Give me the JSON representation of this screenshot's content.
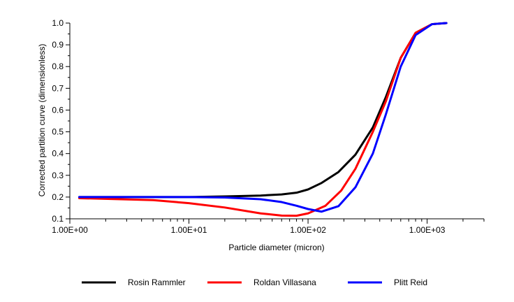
{
  "chart_data": {
    "type": "line",
    "title": "",
    "xlabel": "Particle diameter (micron)",
    "ylabel": "Corrected partition curve (dimensionless)",
    "xscale": "log",
    "xlim": [
      1,
      3000
    ],
    "ylim": [
      0.1,
      1.0
    ],
    "x_ticks": [
      {
        "value": 1,
        "label": "1.00E+00"
      },
      {
        "value": 10,
        "label": "1.00E+01"
      },
      {
        "value": 100,
        "label": "1.00E+02"
      },
      {
        "value": 1000,
        "label": "1.00E+03"
      }
    ],
    "y_ticks": [
      {
        "value": 0.1,
        "label": "0.1"
      },
      {
        "value": 0.2,
        "label": "0.2"
      },
      {
        "value": 0.3,
        "label": "0.3"
      },
      {
        "value": 0.4,
        "label": "0.4"
      },
      {
        "value": 0.5,
        "label": "0.5"
      },
      {
        "value": 0.6,
        "label": "0.6"
      },
      {
        "value": 0.7,
        "label": "0.7"
      },
      {
        "value": 0.8,
        "label": "0.8"
      },
      {
        "value": 0.9,
        "label": "0.9"
      },
      {
        "value": 1.0,
        "label": "1.0"
      }
    ],
    "grid": false,
    "legend_position": "bottom",
    "series": [
      {
        "name": "Rosin Rammler",
        "color": "#000000",
        "x": [
          1.2,
          5,
          10,
          20,
          40,
          60,
          80,
          100,
          130,
          180,
          250,
          350,
          450,
          600,
          800,
          1100,
          1450
        ],
        "y": [
          0.2,
          0.2,
          0.2,
          0.203,
          0.207,
          0.212,
          0.22,
          0.235,
          0.265,
          0.315,
          0.395,
          0.52,
          0.66,
          0.84,
          0.955,
          0.995,
          1.0
        ]
      },
      {
        "name": "Roldan Villasana",
        "color": "#ff0000",
        "x": [
          1.2,
          5,
          10,
          20,
          40,
          60,
          80,
          100,
          140,
          190,
          250,
          350,
          450,
          600,
          800,
          1100,
          1450
        ],
        "y": [
          0.195,
          0.186,
          0.172,
          0.152,
          0.125,
          0.115,
          0.114,
          0.125,
          0.16,
          0.23,
          0.33,
          0.5,
          0.64,
          0.84,
          0.955,
          0.995,
          1.0
        ]
      },
      {
        "name": "Plitt Reid",
        "color": "#0000ff",
        "x": [
          1.2,
          5,
          10,
          20,
          40,
          60,
          80,
          100,
          130,
          180,
          250,
          350,
          450,
          600,
          800,
          1100,
          1450
        ],
        "y": [
          0.2,
          0.2,
          0.2,
          0.198,
          0.19,
          0.177,
          0.16,
          0.145,
          0.133,
          0.158,
          0.245,
          0.4,
          0.58,
          0.8,
          0.945,
          0.995,
          1.0
        ]
      }
    ]
  }
}
